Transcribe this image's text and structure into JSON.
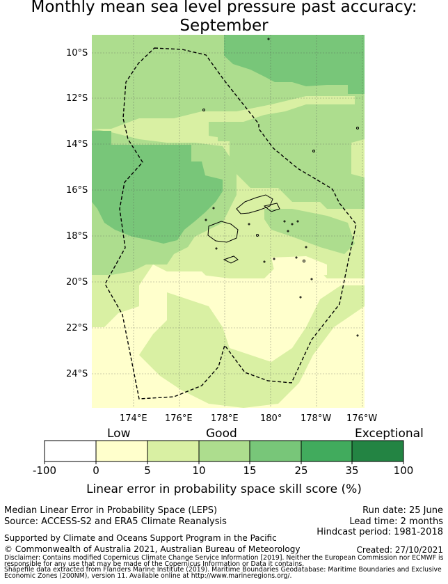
{
  "title_line1": "Monthly mean sea level pressure past accuracy:",
  "title_line2": "September",
  "map": {
    "lat_labels": [
      "10°S",
      "12°S",
      "14°S",
      "16°S",
      "18°S",
      "20°S",
      "22°S",
      "24°S"
    ],
    "lon_labels": [
      "174°E",
      "176°E",
      "178°E",
      "180°",
      "178°W",
      "176°W"
    ],
    "outline_style": "dashed EEZ boundary",
    "categories": {
      "low": "#ffffcc",
      "mid_low": "#d9f0a3",
      "mid": "#addd8e",
      "good": "#78c679",
      "high": "#41ab5d"
    }
  },
  "colorbar": {
    "category_labels": [
      "Low",
      "Good",
      "Exceptional"
    ],
    "ticks": [
      "-100",
      "0",
      "5",
      "10",
      "15",
      "25",
      "35",
      "100"
    ],
    "colors": [
      "#ffffff",
      "#ffffcc",
      "#d9f0a3",
      "#addd8e",
      "#78c679",
      "#41ab5d",
      "#238443"
    ],
    "axis_title": "Linear error in probability space skill score (%)"
  },
  "info": {
    "method": "Median Linear Error in Probability Space (LEPS)",
    "source": "Source: ACCESS-S2 and ERA5 Climate Reanalysis",
    "run_date": "Run date: 25 June",
    "lead_time": "Lead time: 2 months",
    "hindcast": "Hindcast period: 1981-2018",
    "support": "Supported by Climate and Oceans Support Program in the Pacific",
    "copyright": "© Commonwealth of Australia 2021, Australian Bureau of Meteorology",
    "created": "Created: 27/10/2021",
    "disclaimer_1": "Disclaimer: Contains modified Copernicus Climate Change Service Information [2019]. Neither the European Commission nor ECMWF is",
    "disclaimer_2": "responsible for any use that may be made of the Copernicus Information or Data it contains.",
    "shapefile_1": "Shapefile data extracted from Flanders Marine Institute (2019). Maritime Boundaries Geodatabase: Maritime Boundaries and Exclusive",
    "shapefile_2": "Economic Zones (200NM), version 11. Available online at http://www.marineregions.org/."
  }
}
